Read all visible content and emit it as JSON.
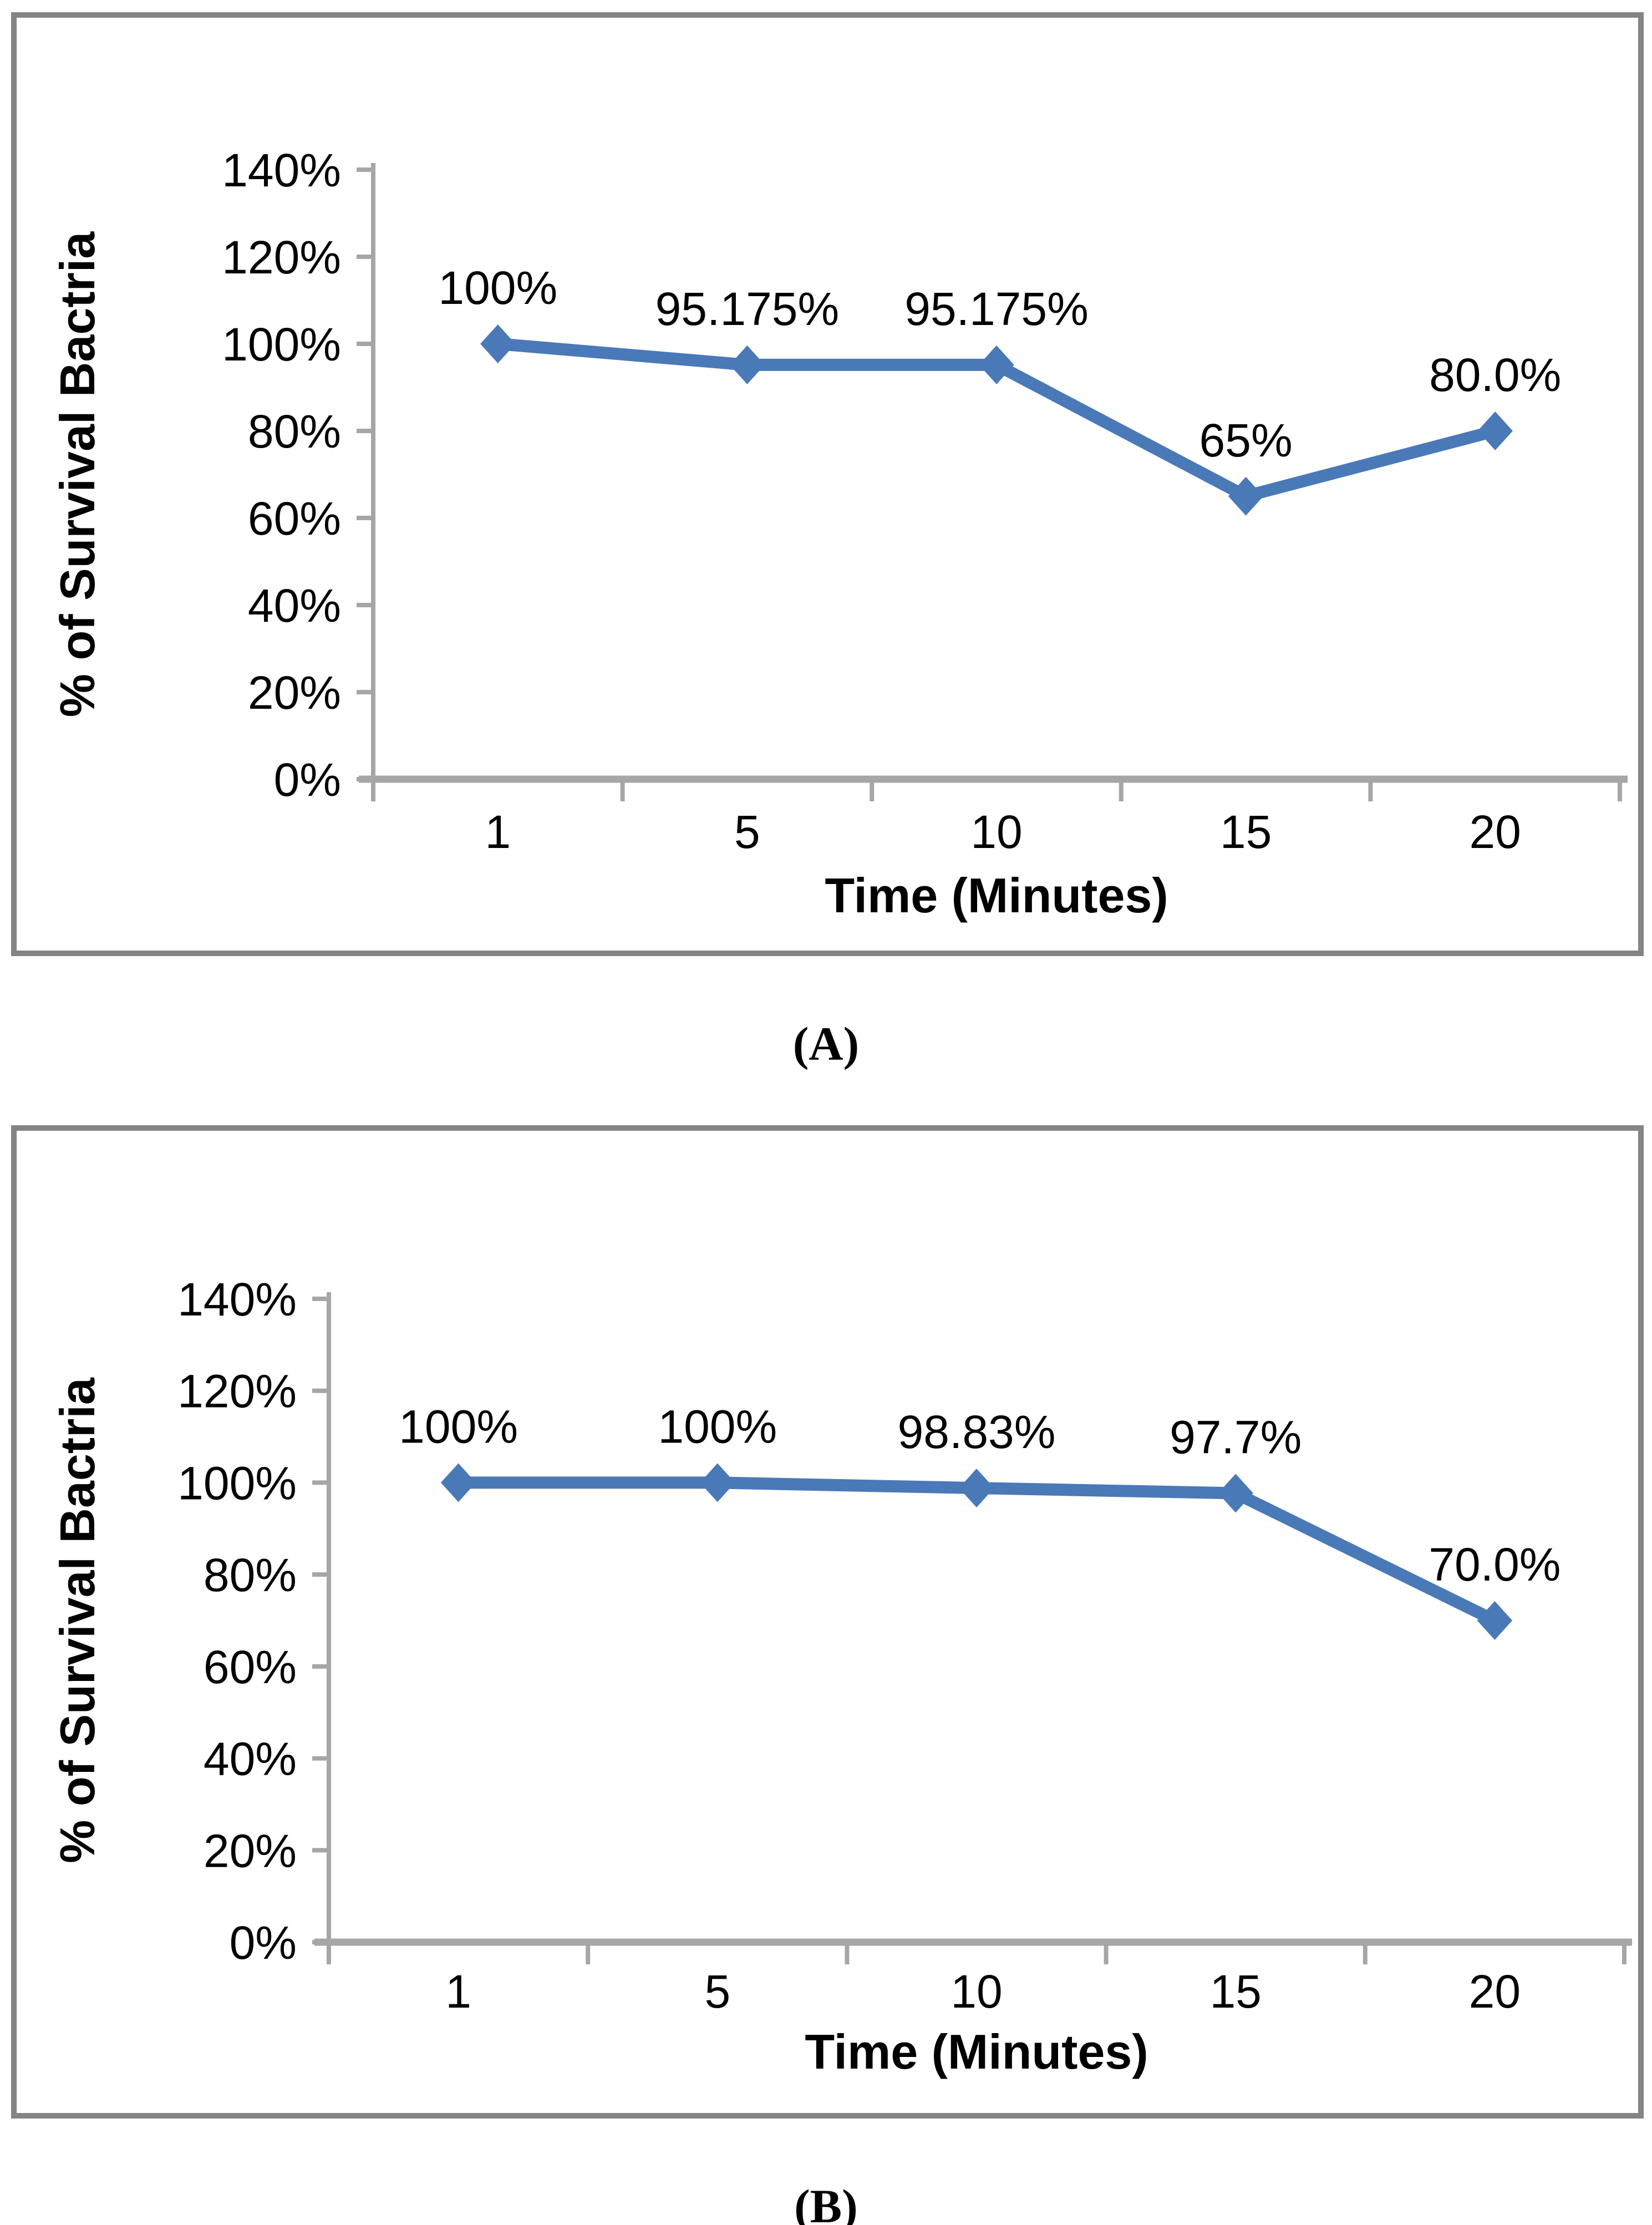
{
  "captions": {
    "a": "(A)",
    "b": "(B)"
  },
  "colors": {
    "line": "#4a79b8",
    "marker": "#4a79b8",
    "axis": "#a6a6a6",
    "panel_border": "#848484",
    "text": "#000000"
  },
  "chart_data": [
    {
      "id": "A",
      "type": "line",
      "categories": [
        "1",
        "5",
        "10",
        "15",
        "20"
      ],
      "series": [
        {
          "name": "% of Survival Bactria",
          "values": [
            100,
            95.175,
            95.175,
            65,
            80
          ]
        }
      ],
      "data_labels": [
        "100%",
        "95.175%",
        "95.175%",
        "65%",
        "80.0%"
      ],
      "xlabel": "Time (Minutes)",
      "ylabel": "% of Survival Bactria",
      "ylim": [
        0,
        140
      ],
      "ytick_step": 20,
      "ytick_labels": [
        "0%",
        "20%",
        "40%",
        "60%",
        "80%",
        "100%",
        "120%",
        "140%"
      ],
      "grid": false,
      "legend": "none"
    },
    {
      "id": "B",
      "type": "line",
      "categories": [
        "1",
        "5",
        "10",
        "15",
        "20"
      ],
      "series": [
        {
          "name": "% of Survival Bactria",
          "values": [
            100,
            100,
            98.83,
            97.7,
            70
          ]
        }
      ],
      "data_labels": [
        "100%",
        "100%",
        "98.83%",
        "97.7%",
        "70.0%"
      ],
      "xlabel": "Time (Minutes)",
      "ylabel": "% of Survival Bactria",
      "ylim": [
        0,
        140
      ],
      "ytick_step": 20,
      "ytick_labels": [
        "0%",
        "20%",
        "40%",
        "60%",
        "80%",
        "100%",
        "120%",
        "140%"
      ],
      "grid": false,
      "legend": "none"
    }
  ]
}
